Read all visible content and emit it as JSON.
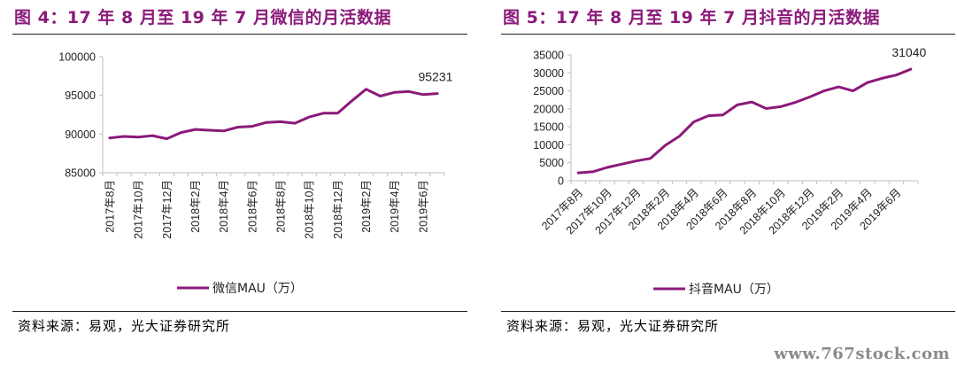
{
  "figures": [
    {
      "title": "图 4：17 年 8 月至 19 年 7 月微信的月活数据",
      "source": "资料来源：易观，光大证券研究所"
    },
    {
      "title": "图 5：17 年 8 月至 19 年 7 月抖音的月活数据",
      "source": "资料来源：易观，光大证券研究所"
    }
  ],
  "watermark": "www.767stock.com",
  "colors": {
    "series": "#8b1a7a",
    "title": "#8b1a7a",
    "axis": "#bfbfbf"
  },
  "chart_data": [
    {
      "type": "line",
      "x": [
        "2017年8月",
        "2017年9月",
        "2017年10月",
        "2017年11月",
        "2017年12月",
        "2018年1月",
        "2018年2月",
        "2018年3月",
        "2018年4月",
        "2018年5月",
        "2018年6月",
        "2018年7月",
        "2018年8月",
        "2018年9月",
        "2018年10月",
        "2018年11月",
        "2018年12月",
        "2019年1月",
        "2019年2月",
        "2019年3月",
        "2019年4月",
        "2019年5月",
        "2019年6月",
        "2019年7月"
      ],
      "tick_labels": [
        "2017年8月",
        "2017年10月",
        "2017年12月",
        "2018年2月",
        "2018年4月",
        "2018年6月",
        "2018年8月",
        "2018年10月",
        "2018年12月",
        "2019年2月",
        "2019年4月",
        "2019年6月"
      ],
      "series": [
        {
          "name": "微信MAU（万）",
          "values": [
            89500,
            89700,
            89600,
            89800,
            89400,
            90200,
            90600,
            90500,
            90400,
            90900,
            91000,
            91500,
            91600,
            91400,
            92200,
            92700,
            92700,
            94300,
            95800,
            94900,
            95400,
            95500,
            95100,
            95231
          ]
        }
      ],
      "ylim": [
        85000,
        100000
      ],
      "yticks": [
        85000,
        90000,
        95000,
        100000
      ],
      "annotation": {
        "text": "95231",
        "index": 23
      },
      "legend_position": "bottom",
      "grid": false
    },
    {
      "type": "line",
      "x": [
        "2017年8月",
        "2017年9月",
        "2017年10月",
        "2017年11月",
        "2017年12月",
        "2018年1月",
        "2018年2月",
        "2018年3月",
        "2018年4月",
        "2018年5月",
        "2018年6月",
        "2018年7月",
        "2018年8月",
        "2018年9月",
        "2018年10月",
        "2018年11月",
        "2018年12月",
        "2019年1月",
        "2019年2月",
        "2019年3月",
        "2019年4月",
        "2019年5月",
        "2019年6月",
        "2019年7月"
      ],
      "tick_labels": [
        "2017年8月",
        "2017年10月",
        "2017年12月",
        "2018年2月",
        "2018年4月",
        "2018年6月",
        "2018年8月",
        "2018年10月",
        "2018年12月",
        "2019年2月",
        "2019年4月",
        "2019年6月"
      ],
      "series": [
        {
          "name": "抖音MAU（万）",
          "values": [
            2200,
            2500,
            3700,
            4600,
            5500,
            6200,
            9800,
            12400,
            16400,
            18100,
            18300,
            21100,
            21900,
            20100,
            20600,
            21800,
            23300,
            25000,
            26100,
            25000,
            27300,
            28500,
            29400,
            31040
          ]
        }
      ],
      "ylim": [
        0,
        35000
      ],
      "yticks": [
        0,
        5000,
        10000,
        15000,
        20000,
        25000,
        30000,
        35000
      ],
      "annotation": {
        "text": "31040",
        "index": 23
      },
      "legend_position": "bottom",
      "grid": false
    }
  ]
}
